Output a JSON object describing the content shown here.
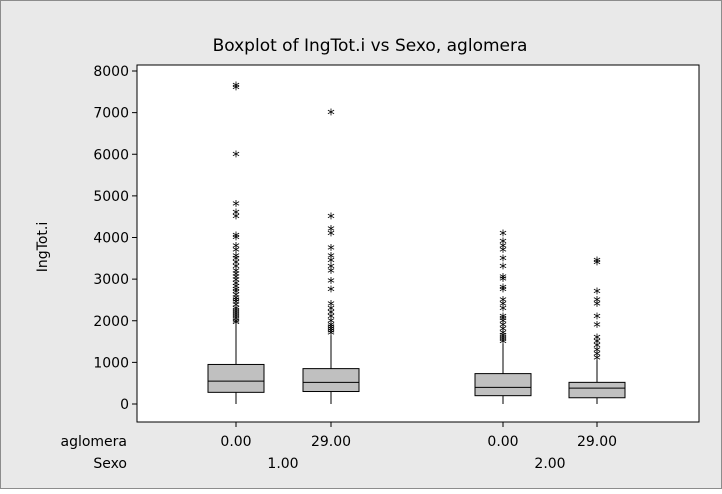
{
  "chart_data": {
    "type": "box",
    "title": "Boxplot of IngTot.i vs Sexo, aglomera",
    "ylabel": "IngTot.i",
    "ylim": [
      -500,
      8200
    ],
    "yticks": [
      0,
      1000,
      2000,
      3000,
      4000,
      5000,
      6000,
      7000,
      8000
    ],
    "grid": false,
    "facet_labels": {
      "inner": "aglomera",
      "outer": "Sexo"
    },
    "groups": [
      {
        "sexo": "1.00",
        "aglomera": "0.00",
        "whisker_low": 0,
        "q1": 280,
        "median": 550,
        "q3": 950,
        "whisker_high": 1950,
        "outliers": [
          1960,
          2000,
          2050,
          2100,
          2150,
          2200,
          2250,
          2300,
          2380,
          2450,
          2500,
          2550,
          2620,
          2700,
          2750,
          2820,
          2900,
          2980,
          3050,
          3120,
          3200,
          3300,
          3400,
          3500,
          3550,
          3700,
          3800,
          4000,
          4050,
          4500,
          4600,
          4800,
          6000,
          7600,
          7650
        ]
      },
      {
        "sexo": "1.00",
        "aglomera": "29.00",
        "whisker_low": 0,
        "q1": 300,
        "median": 520,
        "q3": 850,
        "whisker_high": 1650,
        "outliers": [
          1700,
          1750,
          1800,
          1850,
          1900,
          2000,
          2100,
          2200,
          2300,
          2400,
          2750,
          2950,
          3200,
          3300,
          3450,
          3550,
          3750,
          4100,
          4200,
          4500,
          7000
        ]
      },
      {
        "sexo": "2.00",
        "aglomera": "0.00",
        "whisker_low": 0,
        "q1": 200,
        "median": 400,
        "q3": 730,
        "whisker_high": 1450,
        "outliers": [
          1500,
          1550,
          1600,
          1650,
          1700,
          1800,
          1900,
          2000,
          2050,
          2100,
          2300,
          2400,
          2500,
          2750,
          2800,
          3000,
          3050,
          3300,
          3500,
          3700,
          3800,
          3900,
          4100
        ]
      },
      {
        "sexo": "2.00",
        "aglomera": "29.00",
        "whisker_low": 0,
        "q1": 150,
        "median": 380,
        "q3": 520,
        "whisker_high": 1050,
        "outliers": [
          1100,
          1200,
          1300,
          1400,
          1500,
          1600,
          1900,
          2100,
          2400,
          2500,
          2700,
          3400,
          3450
        ]
      }
    ],
    "colors": {
      "box_fill": "#c0c0c0",
      "plot_bg": "#ffffff",
      "figure_bg": "#e9e9e9",
      "stroke": "#000000"
    }
  }
}
